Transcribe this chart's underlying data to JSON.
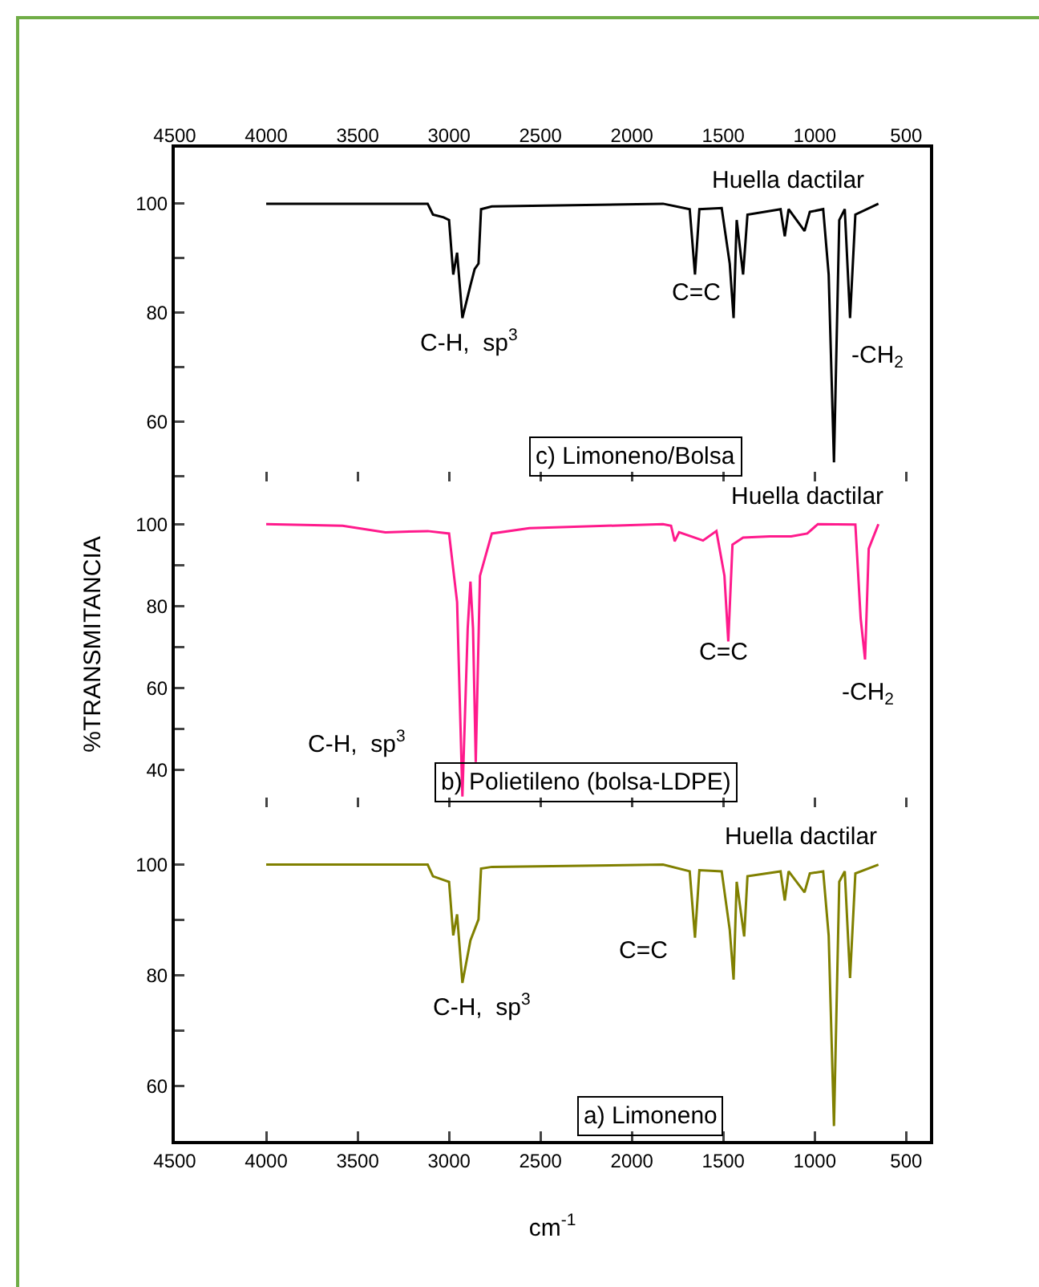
{
  "chart_data": [
    {
      "type": "line",
      "title": "c) Limoneno/Bolsa",
      "xlim": [
        4500,
        370
      ],
      "xticks": [
        4500,
        4000,
        3500,
        3000,
        2500,
        2000,
        1500,
        1000,
        500
      ],
      "x2lim": [
        4500,
        370
      ],
      "x2ticks": [
        4500,
        4000,
        3500,
        3000,
        2500,
        2000,
        1500,
        1000,
        500
      ],
      "ylim": [
        49,
        110.3
      ],
      "yticks": [
        {
          "value": 50,
          "label": null
        },
        60,
        {
          "value": 70,
          "label": null
        },
        80,
        {
          "value": 90,
          "label": null
        },
        100
      ],
      "tick_labels": "y",
      "marker": "none",
      "line_style": "solid",
      "series": [
        {
          "color": "#000000",
          "x": [
            4000,
            3117,
            3088,
            3030,
            3000,
            2977,
            2956,
            2927,
            2883,
            2860,
            2839,
            2825,
            2766,
            1830,
            1684,
            1655,
            1631,
            1509,
            1465,
            1444,
            1427,
            1392,
            1368,
            1187,
            1164,
            1143,
            1056,
            1027,
            954,
            924,
            895,
            866,
            836,
            807,
            778,
            652
          ],
          "values": [
            100,
            100,
            98,
            97.5,
            97,
            87,
            91,
            79,
            85,
            88,
            89,
            99,
            99.5,
            100,
            99,
            87,
            99,
            99.2,
            89,
            79,
            97,
            87,
            98,
            99,
            94,
            99,
            95,
            98.5,
            99,
            87,
            52.5,
            97,
            99,
            79,
            98,
            100
          ]
        }
      ],
      "annotations": [
        "Huella dactilar",
        "C-H,  sp$^{3}$",
        "C=C",
        "-CH$_{2}$"
      ]
    },
    {
      "type": "line",
      "title": "b) Polietileno (bolsa-LDPE)",
      "xlim": [
        4500,
        370
      ],
      "xticks": [
        4500,
        4000,
        3500,
        3000,
        2500,
        2000,
        1500,
        1000,
        500
      ],
      "ylim": [
        31,
        110.4
      ],
      "yticks": [
        {
          "value": 40,
          "label": "40"
        },
        {
          "value": 50,
          "label": null
        },
        60,
        {
          "value": 70,
          "label": null
        },
        80,
        {
          "value": 90,
          "label": null
        },
        100
      ],
      "tick_labels": "y",
      "ylabel": "%TRANSMITANCIA",
      "marker": "none",
      "line_style": "solid",
      "series": [
        {
          "color": "#ff1a8c",
          "x": [
            4000,
            3582,
            3348,
            3117,
            3000,
            2956,
            2927,
            2898,
            2883,
            2869,
            2854,
            2831,
            2766,
            2561,
            1830,
            1786,
            1766,
            1742,
            1611,
            1538,
            1494,
            1473,
            1450,
            1392,
            1246,
            1129,
            1041,
            983,
            778,
            749,
            725,
            705,
            652
          ],
          "values": [
            100,
            99.6,
            98,
            98.3,
            97.7,
            81,
            33.6,
            74.6,
            86,
            74.6,
            42,
            87.4,
            97.7,
            99,
            100,
            99.6,
            95.8,
            98,
            96,
            98.3,
            87.4,
            71.4,
            95,
            96.7,
            97,
            97,
            97.7,
            100,
            99.9,
            77,
            67,
            94,
            100
          ]
        }
      ],
      "annotations": [
        "Huella dactilar",
        "C-H,  sp$^{3}$",
        "C=C",
        "-CH$_{2}$"
      ]
    },
    {
      "type": "line",
      "title": "a) Limoneno",
      "xlim": [
        4500,
        370
      ],
      "xticks": [
        4500,
        4000,
        3500,
        3000,
        2500,
        2000,
        1500,
        1000,
        500
      ],
      "ylim": [
        50,
        110.4
      ],
      "yticks": [
        60,
        {
          "value": 70,
          "label": null
        },
        80,
        {
          "value": 90,
          "label": null
        },
        100
      ],
      "xlabel": "cm$^{-1}$",
      "marker": "none",
      "line_style": "solid",
      "series": [
        {
          "color": "#808000",
          "x": [
            4000,
            3117,
            3088,
            3000,
            2977,
            2956,
            2927,
            2883,
            2839,
            2825,
            2766,
            1830,
            1684,
            1655,
            1631,
            1509,
            1465,
            1444,
            1427,
            1386,
            1368,
            1187,
            1164,
            1143,
            1056,
            1027,
            954,
            924,
            895,
            866,
            836,
            807,
            778,
            652
          ],
          "values": [
            100,
            100,
            97.9,
            96.9,
            87.2,
            91,
            78.6,
            86.3,
            90.1,
            99.3,
            99.6,
            100,
            98.8,
            86.8,
            99,
            98.8,
            88.2,
            79.2,
            96.9,
            87,
            97.9,
            98.8,
            93.5,
            98.8,
            95,
            98.4,
            98.8,
            87.2,
            52.7,
            96.9,
            98.8,
            79.5,
            98.4,
            100
          ]
        }
      ],
      "annotations": [
        "Huella dactilar",
        "C-H,  sp$^{3}$",
        "C=C"
      ]
    }
  ]
}
